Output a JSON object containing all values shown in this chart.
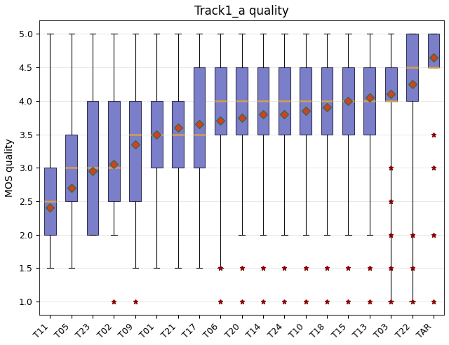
{
  "title": "Track1_a quality",
  "ylabel": "MOS quality",
  "categories": [
    "T11",
    "T05",
    "T23",
    "T02",
    "T09",
    "T01",
    "T21",
    "T17",
    "T06",
    "T20",
    "T14",
    "T24",
    "T10",
    "T18",
    "T15",
    "T13",
    "T03",
    "T22",
    "TAR"
  ],
  "box_data": {
    "T11": {
      "whislo": 1.5,
      "q1": 2.0,
      "med": 2.5,
      "mean": 2.4,
      "q3": 3.0,
      "whishi": 5.0,
      "fliers": []
    },
    "T05": {
      "whislo": 1.5,
      "q1": 2.5,
      "med": 3.0,
      "mean": 2.7,
      "q3": 3.5,
      "whishi": 5.0,
      "fliers": []
    },
    "T23": {
      "whislo": 2.0,
      "q1": 2.0,
      "med": 3.0,
      "mean": 2.95,
      "q3": 4.0,
      "whishi": 5.0,
      "fliers": []
    },
    "T02": {
      "whislo": 2.0,
      "q1": 2.5,
      "med": 3.0,
      "mean": 3.05,
      "q3": 4.0,
      "whishi": 5.0,
      "fliers": [
        1.0
      ]
    },
    "T09": {
      "whislo": 1.5,
      "q1": 2.5,
      "med": 3.5,
      "mean": 3.35,
      "q3": 4.0,
      "whishi": 5.0,
      "fliers": [
        1.0
      ]
    },
    "T01": {
      "whislo": 1.5,
      "q1": 3.0,
      "med": 3.5,
      "mean": 3.5,
      "q3": 4.0,
      "whishi": 5.0,
      "fliers": []
    },
    "T21": {
      "whislo": 1.5,
      "q1": 3.0,
      "med": 3.5,
      "mean": 3.6,
      "q3": 4.0,
      "whishi": 5.0,
      "fliers": []
    },
    "T17": {
      "whislo": 1.5,
      "q1": 3.0,
      "med": 3.5,
      "mean": 3.65,
      "q3": 4.5,
      "whishi": 5.0,
      "fliers": []
    },
    "T06": {
      "whislo": 1.5,
      "q1": 3.5,
      "med": 4.0,
      "mean": 3.7,
      "q3": 4.5,
      "whishi": 5.0,
      "fliers": [
        1.0,
        1.5
      ]
    },
    "T20": {
      "whislo": 2.0,
      "q1": 3.5,
      "med": 4.0,
      "mean": 3.75,
      "q3": 4.5,
      "whishi": 5.0,
      "fliers": [
        1.0,
        1.5
      ]
    },
    "T14": {
      "whislo": 2.0,
      "q1": 3.5,
      "med": 4.0,
      "mean": 3.8,
      "q3": 4.5,
      "whishi": 5.0,
      "fliers": [
        1.0,
        1.5
      ]
    },
    "T24": {
      "whislo": 2.0,
      "q1": 3.5,
      "med": 4.0,
      "mean": 3.8,
      "q3": 4.5,
      "whishi": 5.0,
      "fliers": [
        1.0,
        1.5
      ]
    },
    "T10": {
      "whislo": 2.0,
      "q1": 3.5,
      "med": 4.0,
      "mean": 3.85,
      "q3": 4.5,
      "whishi": 5.0,
      "fliers": [
        1.0,
        1.5
      ]
    },
    "T18": {
      "whislo": 2.0,
      "q1": 3.5,
      "med": 4.0,
      "mean": 3.9,
      "q3": 4.5,
      "whishi": 5.0,
      "fliers": [
        1.0,
        1.5
      ]
    },
    "T15": {
      "whislo": 2.0,
      "q1": 3.5,
      "med": 4.0,
      "mean": 4.0,
      "q3": 4.5,
      "whishi": 5.0,
      "fliers": [
        1.0,
        1.5
      ]
    },
    "T13": {
      "whislo": 2.0,
      "q1": 3.5,
      "med": 4.0,
      "mean": 4.05,
      "q3": 4.5,
      "whishi": 5.0,
      "fliers": [
        1.0,
        1.5
      ]
    },
    "T03": {
      "whislo": 1.0,
      "q1": 4.0,
      "med": 4.0,
      "mean": 4.1,
      "q3": 4.5,
      "whishi": 5.0,
      "fliers": [
        1.0,
        1.5,
        2.0,
        2.5,
        3.0
      ]
    },
    "T22": {
      "whislo": 1.0,
      "q1": 4.0,
      "med": 4.5,
      "mean": 4.25,
      "q3": 5.0,
      "whishi": 5.0,
      "fliers": [
        1.0,
        1.5,
        2.0
      ]
    },
    "TAR": {
      "whislo": 4.5,
      "q1": 4.5,
      "med": 4.5,
      "mean": 4.65,
      "q3": 5.0,
      "whishi": 5.0,
      "fliers": [
        1.0,
        2.0,
        3.0,
        3.5
      ]
    }
  },
  "box_facecolor": "#7b7ec8",
  "box_edgecolor": "#333355",
  "median_color": "#d4a050",
  "mean_marker_facecolor": "#cc4422",
  "mean_marker_edgecolor": "#336633",
  "whisker_color": "#111111",
  "cap_color": "#111111",
  "flier_color": "#8b0000",
  "ylim": [
    0.8,
    5.2
  ],
  "yticks": [
    1.0,
    1.5,
    2.0,
    2.5,
    3.0,
    3.5,
    4.0,
    4.5,
    5.0
  ],
  "figsize": [
    6.4,
    4.92
  ],
  "dpi": 100,
  "title_fontsize": 12,
  "axis_fontsize": 10,
  "tick_fontsize": 9
}
